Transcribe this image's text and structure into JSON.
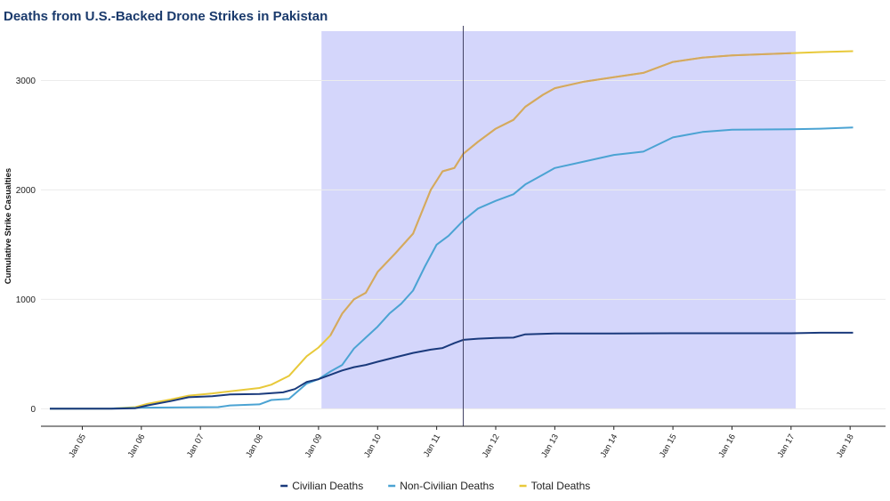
{
  "chart_data": {
    "type": "line",
    "title": "Deaths from U.S.-Backed Drone Strikes in Pakistan",
    "xlabel": "",
    "ylabel": "Cumulative Strike Casualties",
    "xlim": [
      2004.3,
      2018.6
    ],
    "ylim": [
      -160,
      3500
    ],
    "yticks": [
      0,
      1000,
      2000,
      3000
    ],
    "xticks": [
      {
        "value": 2005,
        "label": "Jan 05"
      },
      {
        "value": 2006,
        "label": "Jan 06"
      },
      {
        "value": 2007,
        "label": "Jan 07"
      },
      {
        "value": 2008,
        "label": "Jan 08"
      },
      {
        "value": 2009,
        "label": "Jan 09"
      },
      {
        "value": 2010,
        "label": "Jan 10"
      },
      {
        "value": 2011,
        "label": "Jan 11"
      },
      {
        "value": 2012,
        "label": "Jan 12"
      },
      {
        "value": 2013,
        "label": "Jan 13"
      },
      {
        "value": 2014,
        "label": "Jan 14"
      },
      {
        "value": 2015,
        "label": "Jan 15"
      },
      {
        "value": 2016,
        "label": "Jan 16"
      },
      {
        "value": 2017,
        "label": "Jan 17"
      },
      {
        "value": 2018,
        "label": "Jan 18"
      }
    ],
    "grid": "horizontal",
    "shaded_period": {
      "start": 2009.05,
      "end": 2017.08,
      "color": "#d4d6fb"
    },
    "reference_line": {
      "x": 2011.45,
      "color": "#444466"
    },
    "legend_position": "bottom-center",
    "series": [
      {
        "name": "Civilian Deaths",
        "color": "#1a3a7c",
        "x": [
          2004.45,
          2005.5,
          2005.9,
          2006.1,
          2006.5,
          2006.8,
          2007.2,
          2007.5,
          2008.0,
          2008.4,
          2008.6,
          2008.8,
          2009.0,
          2009.2,
          2009.4,
          2009.6,
          2009.8,
          2010.0,
          2010.3,
          2010.6,
          2010.9,
          2011.1,
          2011.3,
          2011.45,
          2011.7,
          2012.0,
          2012.3,
          2012.5,
          2013.0,
          2014.0,
          2015.0,
          2016.0,
          2017.0,
          2017.5,
          2018.05
        ],
        "values": [
          0,
          0,
          5,
          30,
          70,
          105,
          115,
          130,
          135,
          150,
          180,
          245,
          270,
          310,
          350,
          380,
          400,
          430,
          470,
          510,
          540,
          555,
          600,
          630,
          640,
          648,
          650,
          680,
          688,
          688,
          690,
          690,
          690,
          695,
          695
        ]
      },
      {
        "name": "Non-Civilian Deaths",
        "color": "#4ba3d3",
        "x": [
          2004.45,
          2005.5,
          2006.0,
          2007.3,
          2007.5,
          2008.0,
          2008.2,
          2008.5,
          2008.8,
          2009.0,
          2009.2,
          2009.4,
          2009.6,
          2009.8,
          2010.0,
          2010.2,
          2010.4,
          2010.6,
          2010.8,
          2011.0,
          2011.2,
          2011.45,
          2011.7,
          2012.0,
          2012.3,
          2012.5,
          2012.8,
          2013.0,
          2013.5,
          2014.0,
          2014.5,
          2015.0,
          2015.5,
          2016.0,
          2017.0,
          2017.5,
          2018.05
        ],
        "values": [
          0,
          2,
          10,
          15,
          30,
          40,
          80,
          90,
          230,
          270,
          340,
          400,
          550,
          650,
          750,
          870,
          960,
          1080,
          1300,
          1500,
          1580,
          1720,
          1830,
          1900,
          1960,
          2050,
          2140,
          2200,
          2260,
          2320,
          2350,
          2480,
          2530,
          2550,
          2555,
          2560,
          2570
        ]
      },
      {
        "name": "Total Deaths",
        "color": "#e8c93a",
        "color_in_period": "#d4a860",
        "x": [
          2004.45,
          2005.5,
          2005.9,
          2006.1,
          2006.5,
          2006.8,
          2007.2,
          2007.5,
          2008.0,
          2008.2,
          2008.5,
          2008.8,
          2009.0,
          2009.2,
          2009.4,
          2009.6,
          2009.8,
          2010.0,
          2010.3,
          2010.6,
          2010.9,
          2011.1,
          2011.3,
          2011.45,
          2011.7,
          2012.0,
          2012.3,
          2012.5,
          2012.8,
          2013.0,
          2013.5,
          2014.0,
          2014.5,
          2015.0,
          2015.5,
          2016.0,
          2017.0,
          2017.5,
          2018.05
        ],
        "values": [
          0,
          2,
          15,
          45,
          85,
          120,
          140,
          160,
          190,
          220,
          300,
          480,
          560,
          670,
          870,
          1000,
          1060,
          1250,
          1420,
          1600,
          2000,
          2170,
          2200,
          2330,
          2440,
          2560,
          2640,
          2760,
          2870,
          2930,
          2990,
          3030,
          3070,
          3170,
          3210,
          3230,
          3250,
          3260,
          3268
        ]
      }
    ]
  }
}
